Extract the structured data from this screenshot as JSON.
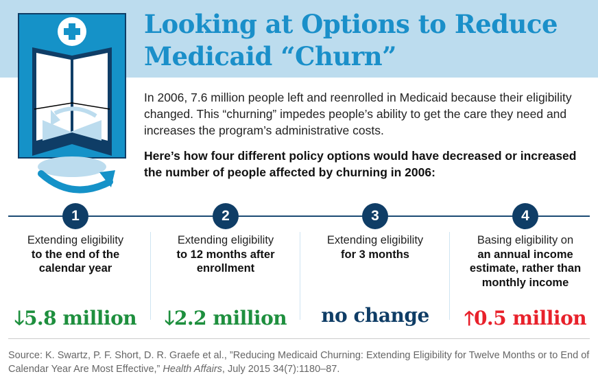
{
  "header": {
    "title_line1": "Looking at Options to Reduce",
    "title_line2": "Medicaid “Churn”"
  },
  "intro": "In 2006, 7.6 million people left and reenrolled in Medicaid because their eligibility changed. This “churning” impedes people’s ability to get the care they need and increases the program’s administrative costs.",
  "lead": "Here’s how four different policy options would have decreased or increased the number of people affected by churning in 2006:",
  "colors": {
    "title": "#1a8fc9",
    "navy": "#0f3d66",
    "decrease": "#1e8f3e",
    "increase": "#e8212b",
    "band": "#bcdcee"
  },
  "options": [
    {
      "number": "1",
      "regular": "Extending eligibility",
      "bold": "to the end of the calendar year",
      "arrow": "down",
      "value": "5.8 million"
    },
    {
      "number": "2",
      "regular": "Extending eligibility",
      "bold": "to 12 months after enrollment",
      "arrow": "down",
      "value": "2.2 million"
    },
    {
      "number": "3",
      "regular": "Extending eligibility",
      "bold": "for 3 months",
      "arrow": "none",
      "value": "no change"
    },
    {
      "number": "4",
      "regular": "Basing eligibility on",
      "bold": "an annual income estimate, rather than monthly income",
      "arrow": "up",
      "value": "0.5 million"
    }
  ],
  "source": {
    "before": "Source: K. Swartz, P. F. Short, D. R. Graefe et al., ”Reducing Medicaid Churning: Extending Eligibility for Twelve Months or to End of Calendar Year Are Most Effective,” ",
    "journal": "Health Affairs",
    "after": ", July 2015 34(7):1180–87."
  }
}
